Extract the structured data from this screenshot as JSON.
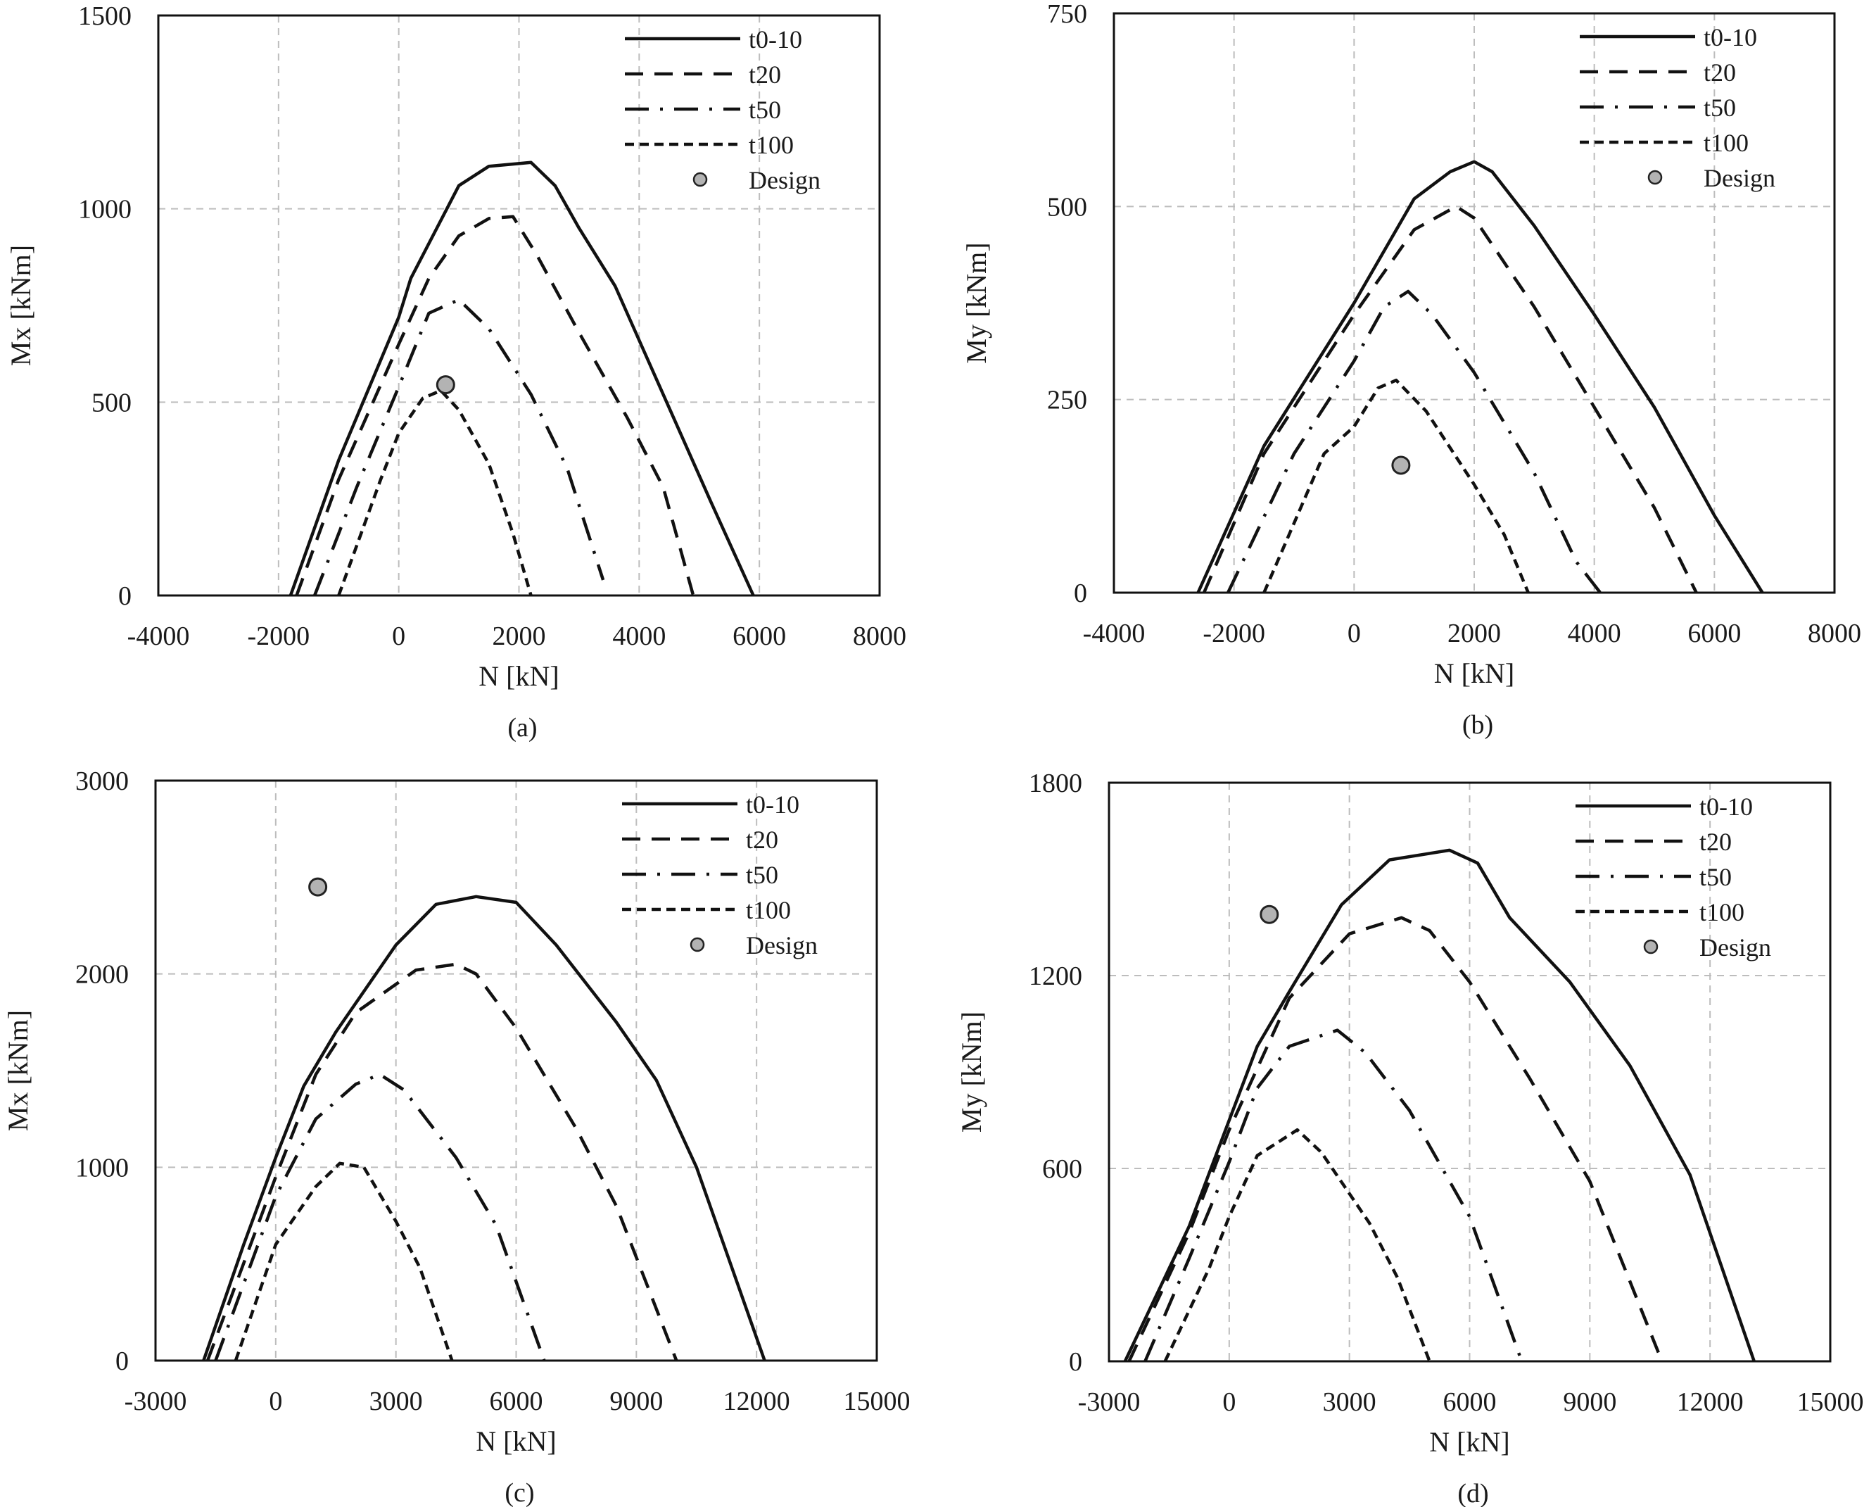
{
  "legend_labels": [
    "t0-10",
    "t20",
    "t50",
    "t100",
    "Design"
  ],
  "colors": {
    "line": "#111111",
    "grid": "#bdbdbd",
    "design_fill": "#b3b3b3",
    "design_stroke": "#222222",
    "axis": "#111111"
  },
  "chart_data": [
    {
      "type": "line",
      "panel_label": "(a)",
      "xlabel": "N [kN]",
      "ylabel": "Mx [kNm]",
      "xlim": [
        -4000,
        8000
      ],
      "ylim": [
        0,
        1500
      ],
      "xticks": [
        -4000,
        -2000,
        0,
        2000,
        4000,
        6000,
        8000
      ],
      "yticks": [
        0,
        500,
        1000,
        1500
      ],
      "xtick_labels": [
        "-4000",
        "-2000",
        "0",
        "2000",
        "4000",
        "6000",
        "8000"
      ],
      "ytick_labels": [
        "0",
        "500",
        "1000",
        "1500"
      ],
      "grid": true,
      "legend_position": "top-right",
      "series": [
        {
          "name": "t0-10",
          "style": "solid",
          "points": [
            [
              -1800,
              0
            ],
            [
              -1000,
              350
            ],
            [
              0,
              720
            ],
            [
              200,
              820
            ],
            [
              1000,
              1060
            ],
            [
              1500,
              1110
            ],
            [
              2200,
              1120
            ],
            [
              2600,
              1060
            ],
            [
              3000,
              950
            ],
            [
              3600,
              800
            ],
            [
              4000,
              660
            ],
            [
              4600,
              450
            ],
            [
              5200,
              240
            ],
            [
              5900,
              0
            ]
          ]
        },
        {
          "name": "t20",
          "style": "dash",
          "points": [
            [
              -1700,
              0
            ],
            [
              -1000,
              300
            ],
            [
              0,
              650
            ],
            [
              500,
              820
            ],
            [
              1000,
              930
            ],
            [
              1500,
              975
            ],
            [
              1900,
              980
            ],
            [
              2300,
              880
            ],
            [
              3000,
              680
            ],
            [
              3800,
              460
            ],
            [
              4400,
              280
            ],
            [
              4900,
              0
            ]
          ]
        },
        {
          "name": "t50",
          "style": "dashdot",
          "points": [
            [
              -1400,
              0
            ],
            [
              -700,
              280
            ],
            [
              0,
              540
            ],
            [
              500,
              730
            ],
            [
              1000,
              765
            ],
            [
              1500,
              690
            ],
            [
              2200,
              520
            ],
            [
              2800,
              330
            ],
            [
              3400,
              40
            ]
          ]
        },
        {
          "name": "t100",
          "style": "shortdash",
          "points": [
            [
              -1000,
              0
            ],
            [
              -300,
              300
            ],
            [
              0,
              420
            ],
            [
              400,
              510
            ],
            [
              700,
              530
            ],
            [
              1000,
              480
            ],
            [
              1500,
              340
            ],
            [
              1900,
              160
            ],
            [
              2200,
              0
            ]
          ]
        }
      ],
      "design_point": {
        "name": "Design",
        "x": 780,
        "y": 545
      }
    },
    {
      "type": "line",
      "panel_label": "(b)",
      "xlabel": "N [kN]",
      "ylabel": "My [kNm]",
      "xlim": [
        -4000,
        8000
      ],
      "ylim": [
        0,
        750
      ],
      "xticks": [
        -4000,
        -2000,
        0,
        2000,
        4000,
        6000,
        8000
      ],
      "yticks": [
        0,
        250,
        500,
        750
      ],
      "xtick_labels": [
        "-4000",
        "-2000",
        "0",
        "2000",
        "4000",
        "6000",
        "8000"
      ],
      "ytick_labels": [
        "0",
        "250",
        "500",
        "750"
      ],
      "grid": true,
      "legend_position": "top-right",
      "series": [
        {
          "name": "t0-10",
          "style": "solid",
          "points": [
            [
              -2600,
              0
            ],
            [
              -1500,
              190
            ],
            [
              0,
              375
            ],
            [
              1000,
              510
            ],
            [
              1600,
              545
            ],
            [
              2000,
              558
            ],
            [
              2300,
              545
            ],
            [
              3000,
              475
            ],
            [
              4000,
              360
            ],
            [
              5000,
              240
            ],
            [
              6000,
              100
            ],
            [
              6800,
              0
            ]
          ]
        },
        {
          "name": "t20",
          "style": "dash",
          "points": [
            [
              -2500,
              0
            ],
            [
              -1500,
              180
            ],
            [
              0,
              360
            ],
            [
              1000,
              470
            ],
            [
              1700,
              500
            ],
            [
              2000,
              485
            ],
            [
              3000,
              370
            ],
            [
              4000,
              240
            ],
            [
              5000,
              110
            ],
            [
              5700,
              0
            ]
          ]
        },
        {
          "name": "t50",
          "style": "dashdot",
          "points": [
            [
              -2100,
              0
            ],
            [
              -1000,
              180
            ],
            [
              0,
              300
            ],
            [
              500,
              370
            ],
            [
              900,
              390
            ],
            [
              1300,
              360
            ],
            [
              2000,
              285
            ],
            [
              3000,
              155
            ],
            [
              3700,
              40
            ],
            [
              4100,
              0
            ]
          ]
        },
        {
          "name": "t100",
          "style": "shortdash",
          "points": [
            [
              -1500,
              0
            ],
            [
              -500,
              180
            ],
            [
              0,
              215
            ],
            [
              400,
              265
            ],
            [
              700,
              275
            ],
            [
              1200,
              235
            ],
            [
              2000,
              140
            ],
            [
              2500,
              75
            ],
            [
              2900,
              0
            ]
          ]
        }
      ],
      "design_point": {
        "name": "Design",
        "x": 780,
        "y": 165
      }
    },
    {
      "type": "line",
      "panel_label": "(c)",
      "xlabel": "N [kN]",
      "ylabel": "Mx [kNm]",
      "xlim": [
        -3000,
        15000
      ],
      "ylim": [
        0,
        3000
      ],
      "xticks": [
        -3000,
        0,
        3000,
        6000,
        9000,
        12000,
        15000
      ],
      "yticks": [
        0,
        1000,
        2000,
        3000
      ],
      "xtick_labels": [
        "-3000",
        "0",
        "3000",
        "6000",
        "9000",
        "12000",
        "15000"
      ],
      "ytick_labels": [
        "0",
        "1000",
        "2000",
        "3000"
      ],
      "grid": true,
      "legend_position": "top-right",
      "series": [
        {
          "name": "t0-10",
          "style": "solid",
          "points": [
            [
              -1800,
              0
            ],
            [
              -800,
              600
            ],
            [
              0,
              1050
            ],
            [
              700,
              1420
            ],
            [
              1500,
              1700
            ],
            [
              3000,
              2150
            ],
            [
              4000,
              2360
            ],
            [
              5000,
              2400
            ],
            [
              6000,
              2370
            ],
            [
              7000,
              2150
            ],
            [
              8500,
              1750
            ],
            [
              9500,
              1450
            ],
            [
              10500,
              1000
            ],
            [
              12200,
              0
            ]
          ]
        },
        {
          "name": "t20",
          "style": "dash",
          "points": [
            [
              -1700,
              0
            ],
            [
              0,
              950
            ],
            [
              1000,
              1480
            ],
            [
              2000,
              1800
            ],
            [
              3500,
              2020
            ],
            [
              4500,
              2050
            ],
            [
              5000,
              2000
            ],
            [
              6000,
              1720
            ],
            [
              7500,
              1200
            ],
            [
              8500,
              800
            ],
            [
              10000,
              0
            ]
          ]
        },
        {
          "name": "t50",
          "style": "dashdot",
          "points": [
            [
              -1500,
              0
            ],
            [
              0,
              850
            ],
            [
              1000,
              1250
            ],
            [
              2000,
              1430
            ],
            [
              2600,
              1480
            ],
            [
              3200,
              1400
            ],
            [
              4500,
              1050
            ],
            [
              5500,
              700
            ],
            [
              6700,
              0
            ]
          ]
        },
        {
          "name": "t100",
          "style": "shortdash",
          "points": [
            [
              -1000,
              0
            ],
            [
              0,
              600
            ],
            [
              1000,
              900
            ],
            [
              1600,
              1020
            ],
            [
              2200,
              1000
            ],
            [
              3000,
              720
            ],
            [
              3600,
              480
            ],
            [
              4400,
              0
            ]
          ]
        }
      ],
      "design_point": {
        "name": "Design",
        "x": 1050,
        "y": 2450
      }
    },
    {
      "type": "line",
      "panel_label": "(d)",
      "xlabel": "N [kN]",
      "ylabel": "My [kNm]",
      "xlim": [
        -3000,
        15000
      ],
      "ylim": [
        0,
        1800
      ],
      "xticks": [
        -3000,
        0,
        3000,
        6000,
        9000,
        12000,
        15000
      ],
      "yticks": [
        0,
        600,
        1200,
        1800
      ],
      "xtick_labels": [
        "-3000",
        "0",
        "3000",
        "6000",
        "9000",
        "12000",
        "15000"
      ],
      "ytick_labels": [
        "0",
        "600",
        "1200",
        "1800"
      ],
      "grid": true,
      "legend_position": "top-right",
      "series": [
        {
          "name": "t0-10",
          "style": "solid",
          "points": [
            [
              -2600,
              0
            ],
            [
              -1000,
              420
            ],
            [
              0,
              750
            ],
            [
              700,
              980
            ],
            [
              1500,
              1150
            ],
            [
              2800,
              1420
            ],
            [
              4000,
              1560
            ],
            [
              5500,
              1590
            ],
            [
              6200,
              1550
            ],
            [
              7000,
              1380
            ],
            [
              8500,
              1180
            ],
            [
              10000,
              920
            ],
            [
              11500,
              580
            ],
            [
              13100,
              0
            ]
          ]
        },
        {
          "name": "t20",
          "style": "dash",
          "points": [
            [
              -2500,
              0
            ],
            [
              -1000,
              400
            ],
            [
              0,
              720
            ],
            [
              1500,
              1130
            ],
            [
              3000,
              1330
            ],
            [
              4300,
              1380
            ],
            [
              5000,
              1340
            ],
            [
              6000,
              1180
            ],
            [
              7500,
              880
            ],
            [
              9000,
              560
            ],
            [
              10800,
              0
            ]
          ]
        },
        {
          "name": "t50",
          "style": "dashdot",
          "points": [
            [
              -2100,
              0
            ],
            [
              -1000,
              320
            ],
            [
              0,
              620
            ],
            [
              700,
              850
            ],
            [
              1500,
              980
            ],
            [
              2700,
              1030
            ],
            [
              3400,
              960
            ],
            [
              4500,
              780
            ],
            [
              6000,
              450
            ],
            [
              7300,
              0
            ]
          ]
        },
        {
          "name": "t100",
          "style": "shortdash",
          "points": [
            [
              -1600,
              0
            ],
            [
              -500,
              290
            ],
            [
              0,
              450
            ],
            [
              700,
              640
            ],
            [
              1700,
              720
            ],
            [
              2300,
              650
            ],
            [
              3500,
              430
            ],
            [
              4200,
              260
            ],
            [
              5000,
              0
            ]
          ]
        }
      ],
      "design_point": {
        "name": "Design",
        "x": 1000,
        "y": 1390
      }
    }
  ]
}
